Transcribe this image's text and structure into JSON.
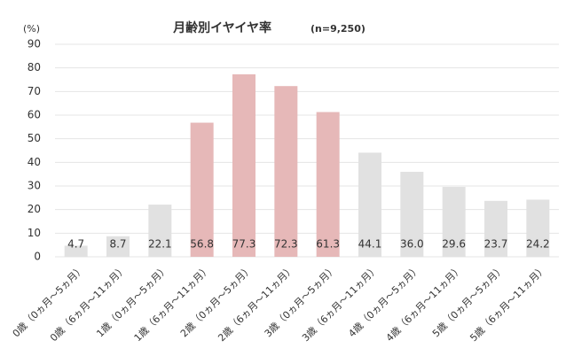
{
  "chart_data": {
    "type": "bar",
    "title": "月齢別イヤイヤ率",
    "subtitle": "(n=9,250)",
    "y_label": "(%)",
    "categories": [
      "0歳（0ヵ月～5ヵ月）",
      "0歳（6ヵ月～11ヵ月）",
      "1歳（0ヵ月～5ヵ月）",
      "1歳（6ヵ月～11ヵ月）",
      "2歳（0ヵ月～5ヵ月）",
      "2歳（6ヵ月～11ヵ月）",
      "3歳（0ヵ月～5ヵ月）",
      "3歳（6ヵ月～11ヵ月）",
      "4歳（0ヵ月～5ヵ月）",
      "4歳（6ヵ月～11ヵ月）",
      "5歳（0ヵ月～5ヵ月）",
      "5歳（6ヵ月～11ヵ月）"
    ],
    "values": [
      4.7,
      8.7,
      22.1,
      56.8,
      77.3,
      72.3,
      61.3,
      44.1,
      36,
      29.6,
      23.7,
      24.2
    ],
    "value_labels": [
      "4.7",
      "8.7",
      "22.1",
      "56.8",
      "77.3",
      "72.3",
      "61.3",
      "44.1",
      "36.0",
      "29.6",
      "23.7",
      "24.2"
    ],
    "colors": [
      "#e1e1e1",
      "#e1e1e1",
      "#e1e1e1",
      "#e6b8b8",
      "#e6b8b8",
      "#e6b8b8",
      "#e6b8b8",
      "#e1e1e1",
      "#e1e1e1",
      "#e1e1e1",
      "#e1e1e1",
      "#e1e1e1"
    ],
    "ylim": [
      0,
      90
    ],
    "yticks": [
      0,
      10,
      20,
      30,
      40,
      50,
      60,
      70,
      80,
      90
    ],
    "grid": true
  }
}
